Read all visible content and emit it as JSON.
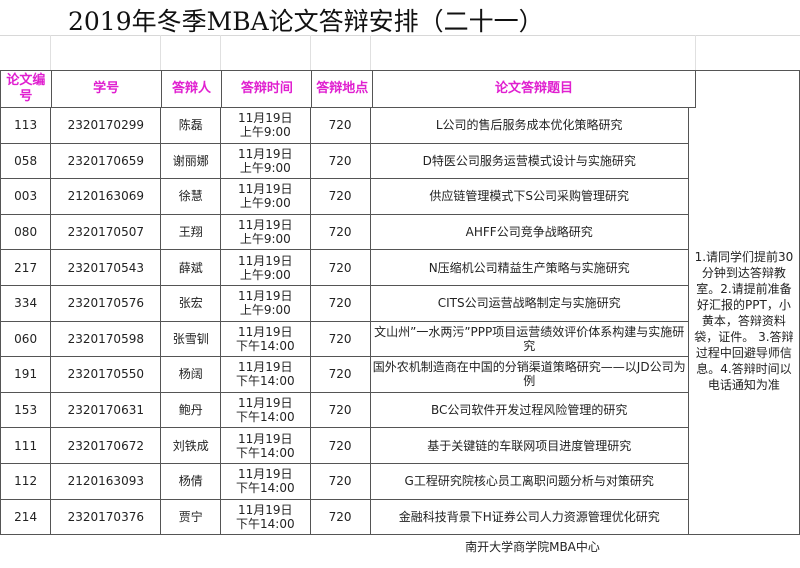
{
  "title": "2019年冬季MBA论文答辩安排（二十一）",
  "headers": {
    "id": "论文编号",
    "student_no": "学号",
    "name": "答辩人",
    "time": "答辩时间",
    "place": "答辩地点",
    "topic": "论文答辩题目"
  },
  "rows": [
    {
      "id": "113",
      "student_no": "2320170299",
      "name": "陈磊",
      "date": "11月19日",
      "time": "上午9:00",
      "place": "720",
      "topic": "L公司的售后服务成本优化策略研究"
    },
    {
      "id": "058",
      "student_no": "2320170659",
      "name": "谢丽娜",
      "date": "11月19日",
      "time": "上午9:00",
      "place": "720",
      "topic": "D特医公司服务运营模式设计与实施研究"
    },
    {
      "id": "003",
      "student_no": "2120163069",
      "name": "徐慧",
      "date": "11月19日",
      "time": "上午9:00",
      "place": "720",
      "topic": "供应链管理模式下S公司采购管理研究"
    },
    {
      "id": "080",
      "student_no": "2320170507",
      "name": "王翔",
      "date": "11月19日",
      "time": "上午9:00",
      "place": "720",
      "topic": "AHFF公司竞争战略研究"
    },
    {
      "id": "217",
      "student_no": "2320170543",
      "name": "薛斌",
      "date": "11月19日",
      "time": "上午9:00",
      "place": "720",
      "topic": "N压缩机公司精益生产策略与实施研究"
    },
    {
      "id": "334",
      "student_no": "2320170576",
      "name": "张宏",
      "date": "11月19日",
      "time": "上午9:00",
      "place": "720",
      "topic": "CITS公司运营战略制定与实施研究"
    },
    {
      "id": "060",
      "student_no": "2320170598",
      "name": "张雪钏",
      "date": "11月19日",
      "time": "下午14:00",
      "place": "720",
      "topic": "文山州”一水两污”PPP项目运营绩效评价体系构建与实施研究"
    },
    {
      "id": "191",
      "student_no": "2320170550",
      "name": "杨阔",
      "date": "11月19日",
      "time": "下午14:00",
      "place": "720",
      "topic": "国外农机制造商在中国的分销渠道策略研究——以JD公司为例"
    },
    {
      "id": "153",
      "student_no": "2320170631",
      "name": "鲍丹",
      "date": "11月19日",
      "time": "下午14:00",
      "place": "720",
      "topic": "BC公司软件开发过程风险管理的研究"
    },
    {
      "id": "111",
      "student_no": "2320170672",
      "name": "刘铁成",
      "date": "11月19日",
      "time": "下午14:00",
      "place": "720",
      "topic": "基于关键链的车联网项目进度管理研究"
    },
    {
      "id": "112",
      "student_no": "2120163093",
      "name": "杨倩",
      "date": "11月19日",
      "time": "下午14:00",
      "place": "720",
      "topic": "G工程研究院核心员工离职问题分析与对策研究"
    },
    {
      "id": "214",
      "student_no": "2320170376",
      "name": "贾宁",
      "date": "11月19日",
      "time": "下午14:00",
      "place": "720",
      "topic": "金融科技背景下H证券公司人力资源管理优化研究"
    }
  ],
  "notes": "1.请同学们提前30分钟到达答辩教室。2.请提前准备好汇报的PPT，小黄本，答辩资料袋，证件。 3.答辩过程中回避导师信息。4.答辩时间以电话通知为准",
  "footer": "南开大学商学院MBA中心",
  "colors": {
    "header_text": "#e020d0"
  }
}
